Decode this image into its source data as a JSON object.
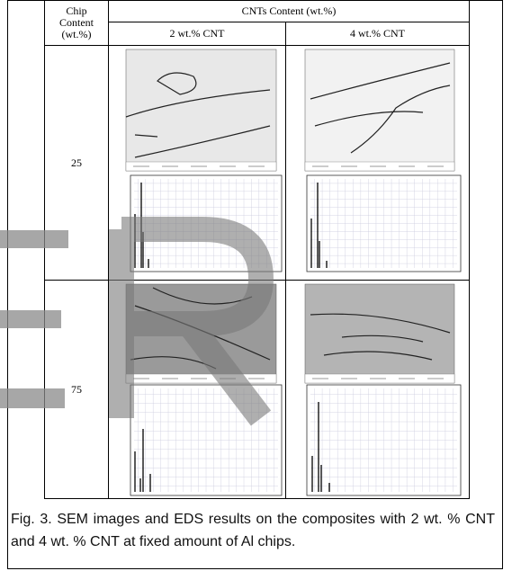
{
  "table": {
    "header": {
      "chip_content": "Chip Content (wt.%)",
      "cnts_content": "CNTs Content (wt.%)",
      "columns": [
        "2 wt.% CNT",
        "4 wt.% CNT"
      ]
    },
    "rows": [
      {
        "chip": "25"
      },
      {
        "chip": "75"
      }
    ]
  },
  "caption": "Fig. 3. SEM images and EDS results on the composites with 2 wt. % CNT and 4 wt. % CNT at fixed amount of Al chips."
}
